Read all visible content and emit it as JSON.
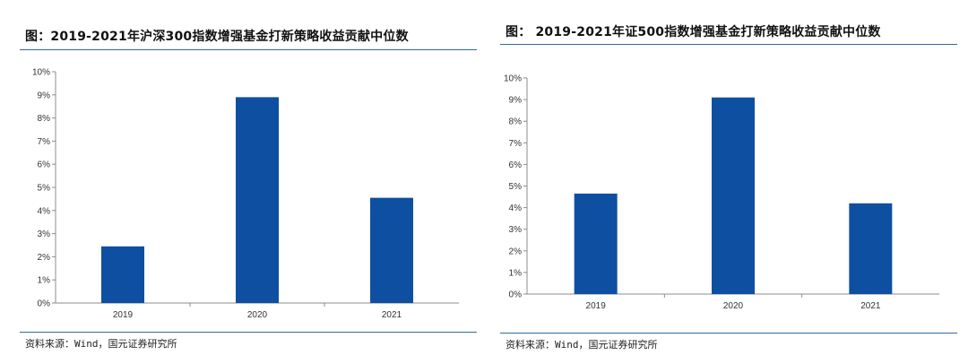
{
  "chart_data": [
    {
      "type": "bar",
      "title": "图：2019-2021年沪深300指数增强基金打新策略收益贡献中位数",
      "categories": [
        "2019",
        "2020",
        "2021"
      ],
      "values": [
        2.45,
        8.9,
        4.55
      ],
      "value_unit": "%",
      "ylim": [
        0,
        10
      ],
      "yticks": [
        "0%",
        "1%",
        "2%",
        "3%",
        "4%",
        "5%",
        "6%",
        "7%",
        "8%",
        "9%",
        "10%"
      ],
      "bar_color": "#0f4fa1",
      "grid": false,
      "legend": "none",
      "source": "资料来源：Wind，国元证券研究所"
    },
    {
      "type": "bar",
      "title": "图： 2019-2021年证500指数增强基金打新策略收益贡献中位数",
      "categories": [
        "2019",
        "2020",
        "2021"
      ],
      "values": [
        4.65,
        9.1,
        4.2
      ],
      "value_unit": "%",
      "ylim": [
        0,
        10
      ],
      "yticks": [
        "0%",
        "1%",
        "2%",
        "3%",
        "4%",
        "5%",
        "6%",
        "7%",
        "8%",
        "9%",
        "10%"
      ],
      "bar_color": "#0f4fa1",
      "grid": false,
      "legend": "none",
      "source": "资料来源：Wind，国元证券研究所"
    }
  ]
}
